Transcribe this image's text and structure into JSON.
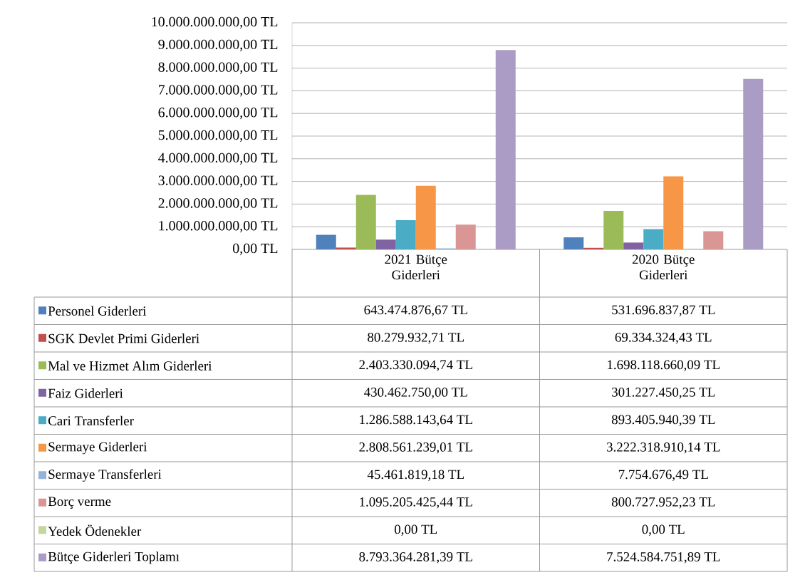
{
  "chart_data": {
    "type": "bar",
    "categories": [
      "2021 Bütçe Giderleri",
      "2020 Bütçe Giderleri"
    ],
    "ylim": [
      0,
      10000000000
    ],
    "yticks": [
      {
        "value": 0,
        "label": "0,00 TL"
      },
      {
        "value": 1000000000,
        "label": "1.000.000.000,00 TL"
      },
      {
        "value": 2000000000,
        "label": "2.000.000.000,00 TL"
      },
      {
        "value": 3000000000,
        "label": "3.000.000.000,00 TL"
      },
      {
        "value": 4000000000,
        "label": "4.000.000.000,00 TL"
      },
      {
        "value": 5000000000,
        "label": "5.000.000.000,00 TL"
      },
      {
        "value": 6000000000,
        "label": "6.000.000.000,00 TL"
      },
      {
        "value": 7000000000,
        "label": "7.000.000.000,00 TL"
      },
      {
        "value": 8000000000,
        "label": "8.000.000.000,00 TL"
      },
      {
        "value": 9000000000,
        "label": "9.000.000.000,00 TL"
      },
      {
        "value": 10000000000,
        "label": "10.000.000.000,00 TL"
      }
    ],
    "grid": "y",
    "legend": "bottom",
    "series": [
      {
        "name": "Personel Giderleri",
        "color": "#4f81bd",
        "values": [
          643474876.67,
          531696837.87
        ],
        "value_labels": [
          "643.474.876,67 TL",
          "531.696.837,87 TL"
        ]
      },
      {
        "name": "SGK Devlet Primi Giderleri",
        "color": "#c0504d",
        "values": [
          80279932.71,
          69334324.43
        ],
        "value_labels": [
          "80.279.932,71 TL",
          "69.334.324,43 TL"
        ]
      },
      {
        "name": "Mal ve Hizmet Alım Giderleri",
        "color": "#9bbb59",
        "values": [
          2403330094.74,
          1698118660.09
        ],
        "value_labels": [
          "2.403.330.094,74 TL",
          "1.698.118.660,09 TL"
        ]
      },
      {
        "name": "Faiz Giderleri",
        "color": "#8064a2",
        "values": [
          430462750.0,
          301227450.25
        ],
        "value_labels": [
          "430.462.750,00 TL",
          "301.227.450,25 TL"
        ]
      },
      {
        "name": "Cari Transferler",
        "color": "#4bacc6",
        "values": [
          1286588143.64,
          893405940.39
        ],
        "value_labels": [
          "1.286.588.143,64 TL",
          "893.405.940,39 TL"
        ]
      },
      {
        "name": "Sermaye Giderleri",
        "color": "#f79646",
        "values": [
          2808561239.01,
          3222318910.14
        ],
        "value_labels": [
          "2.808.561.239,01 TL",
          "3.222.318.910,14 TL"
        ]
      },
      {
        "name": "Sermaye Transferleri",
        "color": "#95b3d7",
        "values": [
          45461819.18,
          7754676.49
        ],
        "value_labels": [
          "45.461.819,18 TL",
          "7.754.676,49 TL"
        ]
      },
      {
        "name": "Borç verme",
        "color": "#d99694",
        "values": [
          1095205425.44,
          800727952.23
        ],
        "value_labels": [
          "1.095.205.425,44 TL",
          "800.727.952,23 TL"
        ]
      },
      {
        "name": "Yedek Ödenekler",
        "color": "#c3d69b",
        "values": [
          0,
          0
        ],
        "value_labels": [
          "0,00 TL",
          "0,00 TL"
        ]
      },
      {
        "name": "Bütçe Giderleri Toplamı",
        "color": "#aa9cc5",
        "values": [
          8793364281.39,
          7524584751.89
        ],
        "value_labels": [
          "8.793.364.281,39 TL",
          "7.524.584.751,89 TL"
        ]
      }
    ]
  }
}
